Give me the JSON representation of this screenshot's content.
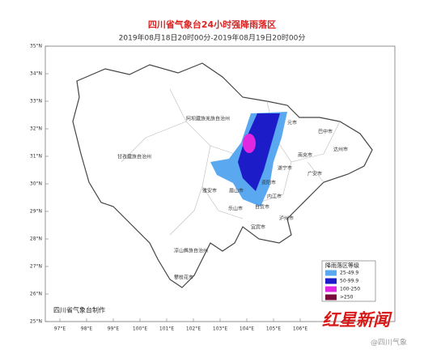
{
  "header": {
    "title": "四川省气象台24小时强降雨落区",
    "subtitle": "2019年08月18日20时00分-2019年08月19日20时00分"
  },
  "lat_labels": [
    "35°N",
    "34°N",
    "33°N",
    "32°N",
    "31°N",
    "30°N",
    "29°N",
    "28°N",
    "27°N",
    "26°N",
    "25°N"
  ],
  "lon_labels": [
    "97°E",
    "98°E",
    "99°E",
    "100°E",
    "101°E",
    "102°E",
    "103°E",
    "104°E",
    "105°E",
    "106°E"
  ],
  "places": [
    "阿坝藏族羌族自治州",
    "甘孜藏族自治州",
    "凉山彝族自治州",
    "攀枝花市",
    "雅安市",
    "乐山市",
    "眉山市",
    "自贡市",
    "内江市",
    "宜宾市",
    "泸州市",
    "遂宁市",
    "南充市",
    "广安市",
    "达州市",
    "巴中市",
    "元市",
    "资阳市"
  ],
  "legend": {
    "title": "降雨落区等级",
    "items": [
      {
        "label": "25-49.9",
        "color": "#5aa8f0"
      },
      {
        "label": "50-99.9",
        "color": "#1c1cc8"
      },
      {
        "label": "100-250",
        "color": "#e028e0"
      },
      {
        "label": ">250",
        "color": "#7a0a3a"
      }
    ]
  },
  "credit": "四川省气象台制作",
  "watermark": {
    "brand": "红星新闻",
    "handle": "@四川气象"
  }
}
